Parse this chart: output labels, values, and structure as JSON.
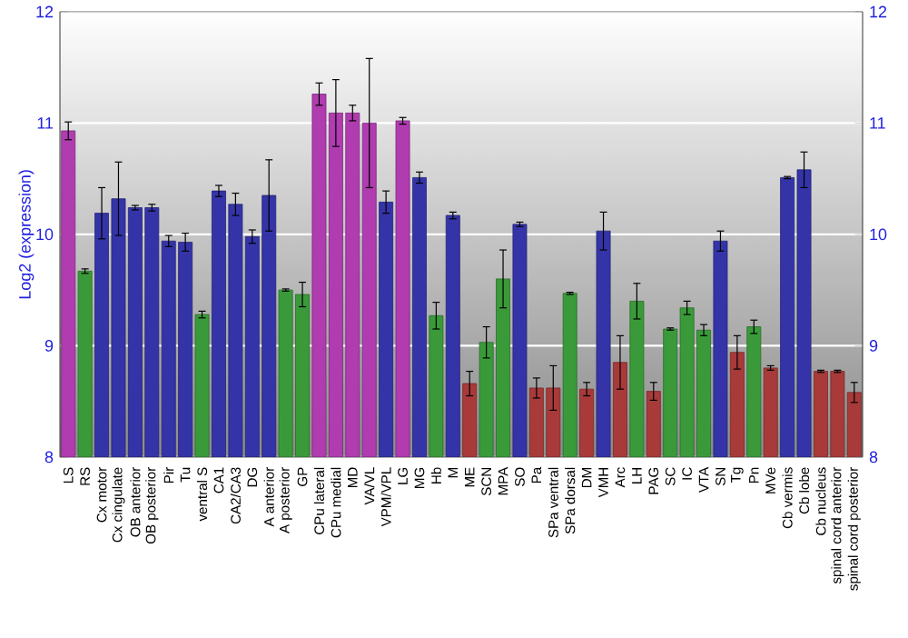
{
  "chart_data": {
    "type": "bar",
    "ylabel": "Log2 (expression)",
    "categories": [
      "LS",
      "RS",
      "Cx motor",
      "Cx cingulate",
      "OB anterior",
      "OB posterior",
      "Pir",
      "Tu",
      "ventral S",
      "CA1",
      "CA2/CA3",
      "DG",
      "A anterior",
      "A posterior",
      "GP",
      "CPu lateral",
      "CPu medial",
      "MD",
      "VA/VL",
      "VPM/VPL",
      "LG",
      "MG",
      "Hb",
      "M",
      "ME",
      "SCN",
      "MPA",
      "SO",
      "Pa",
      "SPa ventral",
      "SPa dorsal",
      "DM",
      "VMH",
      "Arc",
      "LH",
      "PAG",
      "SC",
      "IC",
      "VTA",
      "SN",
      "Tg",
      "Pn",
      "MVe",
      "Cb vermis",
      "Cb lobe",
      "Cb nucleus",
      "spinal cord anterior",
      "spinal cord posterior"
    ],
    "values": [
      10.93,
      9.67,
      10.19,
      10.32,
      10.24,
      10.24,
      9.94,
      9.93,
      9.28,
      10.39,
      10.27,
      9.98,
      10.35,
      9.5,
      9.46,
      11.26,
      11.09,
      11.09,
      11.0,
      10.29,
      11.02,
      10.51,
      9.27,
      10.17,
      8.66,
      9.03,
      9.6,
      10.09,
      8.62,
      8.62,
      9.47,
      8.61,
      10.03,
      8.85,
      9.4,
      8.59,
      9.15,
      9.34,
      9.14,
      9.94,
      8.94,
      9.17,
      8.8,
      10.51,
      10.58,
      8.77,
      8.77,
      8.58
    ],
    "errors": [
      0.08,
      0.02,
      0.23,
      0.33,
      0.02,
      0.03,
      0.05,
      0.08,
      0.03,
      0.05,
      0.1,
      0.06,
      0.32,
      0.01,
      0.11,
      0.1,
      0.3,
      0.07,
      0.58,
      0.1,
      0.03,
      0.05,
      0.12,
      0.03,
      0.11,
      0.14,
      0.26,
      0.02,
      0.09,
      0.2,
      0.01,
      0.06,
      0.17,
      0.24,
      0.16,
      0.08,
      0.01,
      0.06,
      0.05,
      0.09,
      0.15,
      0.06,
      0.02,
      0.01,
      0.16,
      0.01,
      0.01,
      0.09
    ],
    "colors": [
      "#b03cb0",
      "#3a9a3a",
      "#3434a8",
      "#3434a8",
      "#3434a8",
      "#3434a8",
      "#3434a8",
      "#3434a8",
      "#3a9a3a",
      "#3434a8",
      "#3434a8",
      "#3434a8",
      "#3434a8",
      "#3a9a3a",
      "#3a9a3a",
      "#b03cb0",
      "#b03cb0",
      "#b03cb0",
      "#b03cb0",
      "#3434a8",
      "#b03cb0",
      "#3434a8",
      "#3a9a3a",
      "#3434a8",
      "#a83a3a",
      "#3a9a3a",
      "#3a9a3a",
      "#3434a8",
      "#a83a3a",
      "#a83a3a",
      "#3a9a3a",
      "#a83a3a",
      "#3434a8",
      "#a83a3a",
      "#3a9a3a",
      "#a83a3a",
      "#3a9a3a",
      "#3a9a3a",
      "#3a9a3a",
      "#3434a8",
      "#a83a3a",
      "#3a9a3a",
      "#a83a3a",
      "#3434a8",
      "#3434a8",
      "#a83a3a",
      "#a83a3a",
      "#a83a3a"
    ],
    "ylim": [
      8,
      12
    ],
    "yticks": [
      8,
      9,
      10,
      11,
      12
    ],
    "y2lim": [
      8,
      12
    ],
    "y2ticks": [
      8,
      9,
      10,
      11,
      12
    ],
    "grid": "y"
  }
}
